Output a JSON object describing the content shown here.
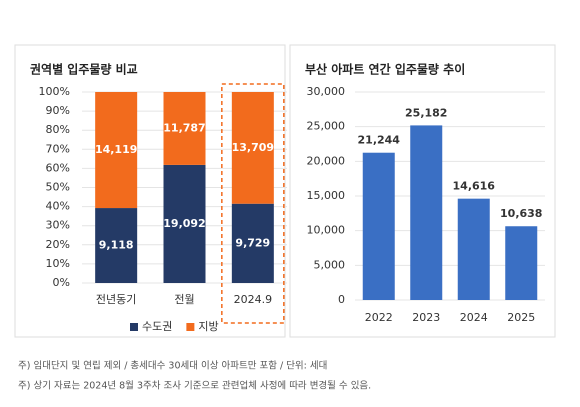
{
  "chart_data": [
    {
      "type": "bar",
      "stacking": "percent",
      "title": "권역별 입주물량 비교",
      "categories": [
        "전년동기",
        "전월",
        "2024.9"
      ],
      "series": [
        {
          "name": "수도권",
          "color": "#243a66",
          "values": [
            9118,
            19092,
            9729
          ],
          "value_labels": [
            "9,118",
            "19,092",
            "9,729"
          ]
        },
        {
          "name": "지방",
          "color": "#f26b1d",
          "values": [
            14119,
            11787,
            13709
          ],
          "value_labels": [
            "14,119",
            "11,787",
            "13,709"
          ]
        }
      ],
      "ylim": [
        0,
        100
      ],
      "yticks": [
        {
          "value": 0,
          "label": "0%"
        },
        {
          "value": 10,
          "label": "10%"
        },
        {
          "value": 20,
          "label": "20%"
        },
        {
          "value": 30,
          "label": "30%"
        },
        {
          "value": 40,
          "label": "40%"
        },
        {
          "value": 50,
          "label": "50%"
        },
        {
          "value": 60,
          "label": "60%"
        },
        {
          "value": 70,
          "label": "70%"
        },
        {
          "value": 80,
          "label": "80%"
        },
        {
          "value": 90,
          "label": "90%"
        },
        {
          "value": 100,
          "label": "100%"
        }
      ],
      "legend": "bottom",
      "highlight": 2
    },
    {
      "type": "bar",
      "title": "부산 아파트 연간 입주물량 추이",
      "categories": [
        "2022",
        "2023",
        "2024",
        "2025"
      ],
      "values": [
        21244,
        25182,
        14616,
        10638
      ],
      "value_labels": [
        "21,244",
        "25,182",
        "14,616",
        "10,638"
      ],
      "color": "#3a6fc4",
      "ylim": [
        0,
        30000
      ],
      "yticks": [
        0,
        {
          "value": 5000,
          "label": "5,000"
        },
        {
          "value": 10000,
          "label": "10,000"
        },
        {
          "value": 15000,
          "label": "15,000"
        },
        {
          "value": 20000,
          "label": "20,000"
        },
        {
          "value": 25000,
          "label": "25,000"
        },
        {
          "value": 30000,
          "label": "30,000"
        }
      ]
    }
  ],
  "notes": [
    "주) 임대단지 및 연립 제외 / 총세대수 30세대 이상 아파트만 포함 / 단위: 세대",
    "주) 상기 자료는 2024년 8월 3주차 조사 기준으로 관련업체 사정에 따라 변경될 수 있음."
  ]
}
